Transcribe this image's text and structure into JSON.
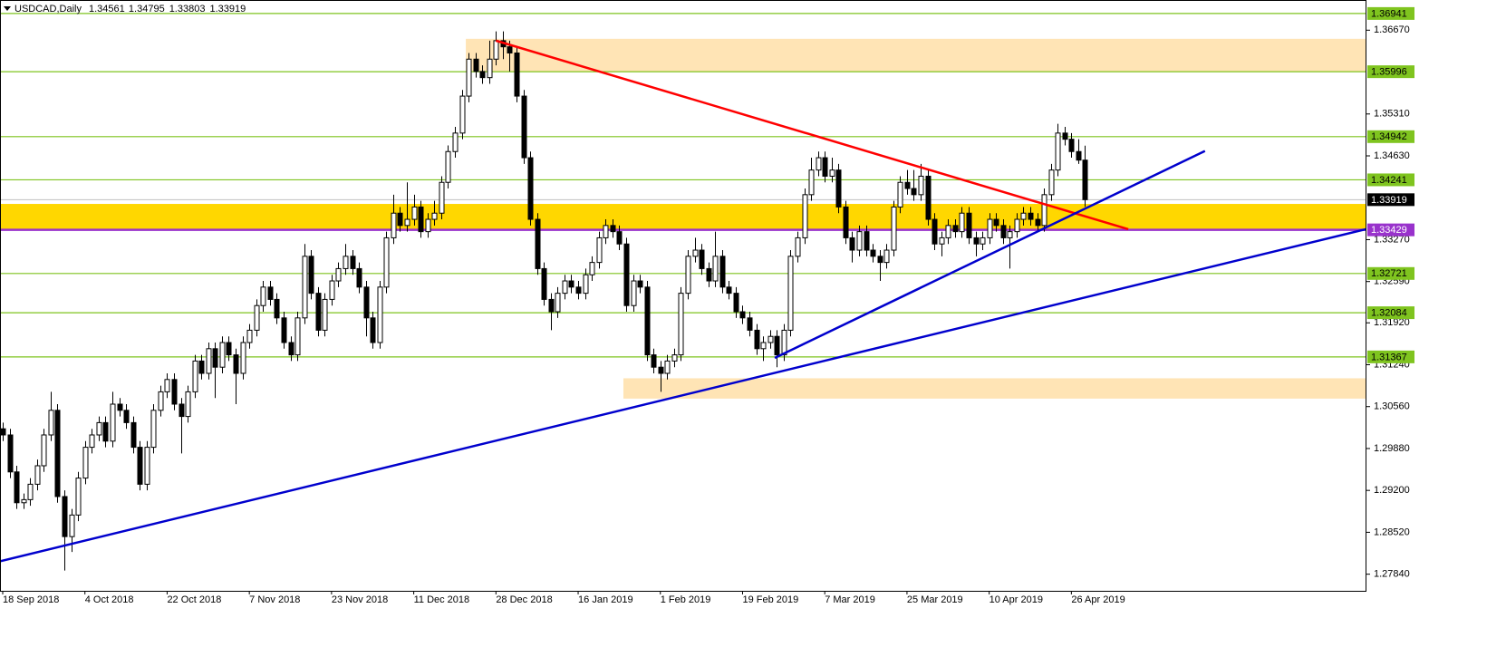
{
  "chart_data": {
    "type": "candlestick",
    "title": "USDCAD,Daily",
    "categories": [
      "18 Sep 2018",
      null,
      null,
      null,
      null,
      null,
      null,
      null,
      null,
      null,
      null,
      null,
      "4 Oct 2018",
      null,
      null,
      null,
      null,
      null,
      null,
      null,
      null,
      null,
      null,
      null,
      "22 Oct 2018",
      null,
      null,
      null,
      null,
      null,
      null,
      null,
      null,
      null,
      null,
      null,
      "7 Nov 2018",
      null,
      null,
      null,
      null,
      null,
      null,
      null,
      null,
      null,
      null,
      null,
      "23 Nov 2018",
      null,
      null,
      null,
      null,
      null,
      null,
      null,
      null,
      null,
      null,
      null,
      "11 Dec 2018",
      null,
      null,
      null,
      null,
      null,
      null,
      null,
      null,
      null,
      null,
      null,
      "28 Dec 2018",
      null,
      null,
      null,
      null,
      null,
      null,
      null,
      null,
      null,
      null,
      null,
      "16 Jan 2019",
      null,
      null,
      null,
      null,
      null,
      null,
      null,
      null,
      null,
      null,
      null,
      "1 Feb 2019",
      null,
      null,
      null,
      null,
      null,
      null,
      null,
      null,
      null,
      null,
      null,
      "19 Feb 2019",
      null,
      null,
      null,
      null,
      null,
      null,
      null,
      null,
      null,
      null,
      null,
      "7 Mar 2019",
      null,
      null,
      null,
      null,
      null,
      null,
      null,
      null,
      null,
      null,
      null,
      "25 Mar 2019",
      null,
      null,
      null,
      null,
      null,
      null,
      null,
      null,
      null,
      null,
      null,
      "10 Apr 2019",
      null,
      null,
      null,
      null,
      null,
      null,
      null,
      null,
      null,
      null,
      null,
      "26 Apr 2019",
      null,
      null
    ],
    "open": [
      1.302,
      1.301,
      1.295,
      1.29,
      1.2905,
      1.293,
      1.296,
      1.301,
      1.305,
      1.291,
      1.2845,
      1.288,
      1.294,
      1.299,
      1.301,
      1.303,
      1.3,
      1.306,
      1.305,
      1.303,
      1.299,
      1.293,
      1.299,
      1.305,
      1.308,
      1.31,
      1.306,
      1.304,
      1.308,
      1.313,
      1.311,
      1.315,
      1.312,
      1.316,
      1.314,
      1.311,
      1.316,
      1.318,
      1.322,
      1.325,
      1.323,
      1.32,
      1.316,
      1.314,
      1.32,
      1.33,
      1.324,
      1.318,
      1.323,
      1.326,
      1.328,
      1.33,
      1.328,
      1.325,
      1.32,
      1.316,
      1.325,
      1.333,
      1.337,
      1.335,
      1.336,
      1.338,
      1.334,
      1.336,
      1.337,
      1.342,
      1.347,
      1.35,
      1.356,
      1.362,
      1.36,
      1.359,
      1.362,
      1.365,
      1.364,
      1.363,
      1.356,
      1.346,
      1.336,
      1.328,
      1.323,
      1.321,
      1.324,
      1.326,
      1.325,
      1.324,
      1.327,
      1.329,
      1.333,
      1.335,
      1.334,
      1.332,
      1.322,
      1.326,
      1.325,
      1.314,
      1.312,
      1.311,
      1.313,
      1.314,
      1.324,
      1.33,
      1.331,
      1.328,
      1.326,
      1.33,
      1.325,
      1.324,
      1.321,
      1.32,
      1.318,
      1.315,
      1.316,
      1.317,
      1.314,
      1.318,
      1.33,
      1.333,
      1.34,
      1.344,
      1.346,
      1.343,
      1.344,
      1.338,
      1.333,
      1.331,
      1.334,
      1.331,
      1.33,
      1.329,
      1.331,
      1.338,
      1.342,
      1.341,
      1.34,
      1.343,
      1.336,
      1.332,
      1.333,
      1.335,
      1.334,
      1.337,
      1.333,
      1.332,
      1.333,
      1.336,
      1.335,
      1.333,
      1.334,
      1.336,
      1.337,
      1.336,
      1.335,
      1.34,
      1.344,
      1.35,
      1.349,
      1.347,
      1.34561
    ],
    "high": [
      1.303,
      1.302,
      1.296,
      1.2915,
      1.294,
      1.297,
      1.302,
      1.308,
      1.306,
      1.292,
      1.289,
      1.295,
      1.3,
      1.302,
      1.304,
      1.304,
      1.308,
      1.307,
      1.306,
      1.304,
      1.3,
      1.3,
      1.306,
      1.309,
      1.311,
      1.311,
      1.307,
      1.309,
      1.314,
      1.314,
      1.316,
      1.316,
      1.317,
      1.317,
      1.315,
      1.317,
      1.319,
      1.323,
      1.326,
      1.326,
      1.324,
      1.321,
      1.317,
      1.321,
      1.332,
      1.331,
      1.325,
      1.324,
      1.327,
      1.329,
      1.332,
      1.331,
      1.329,
      1.326,
      1.321,
      1.326,
      1.334,
      1.34,
      1.338,
      1.342,
      1.34,
      1.339,
      1.337,
      1.339,
      1.343,
      1.348,
      1.351,
      1.357,
      1.363,
      1.363,
      1.361,
      1.365,
      1.3665,
      1.3665,
      1.365,
      1.364,
      1.357,
      1.347,
      1.337,
      1.329,
      1.324,
      1.325,
      1.327,
      1.327,
      1.326,
      1.328,
      1.33,
      1.334,
      1.336,
      1.336,
      1.335,
      1.333,
      1.327,
      1.327,
      1.326,
      1.315,
      1.313,
      1.314,
      1.315,
      1.325,
      1.331,
      1.333,
      1.332,
      1.329,
      1.334,
      1.331,
      1.326,
      1.325,
      1.322,
      1.321,
      1.319,
      1.317,
      1.318,
      1.318,
      1.319,
      1.331,
      1.334,
      1.341,
      1.346,
      1.347,
      1.347,
      1.346,
      1.345,
      1.339,
      1.334,
      1.335,
      1.335,
      1.332,
      1.331,
      1.332,
      1.339,
      1.343,
      1.344,
      1.344,
      1.345,
      1.344,
      1.337,
      1.334,
      1.336,
      1.336,
      1.338,
      1.338,
      1.334,
      1.334,
      1.337,
      1.337,
      1.336,
      1.335,
      1.337,
      1.338,
      1.338,
      1.337,
      1.341,
      1.345,
      1.3515,
      1.351,
      1.35,
      1.349,
      1.34795
    ],
    "low": [
      1.3,
      1.294,
      1.289,
      1.289,
      1.2895,
      1.292,
      1.295,
      1.3,
      1.29,
      1.279,
      1.282,
      1.287,
      1.293,
      1.298,
      1.3,
      1.299,
      1.299,
      1.304,
      1.302,
      1.298,
      1.292,
      1.292,
      1.298,
      1.304,
      1.307,
      1.305,
      1.298,
      1.303,
      1.307,
      1.31,
      1.31,
      1.307,
      1.311,
      1.313,
      1.306,
      1.31,
      1.315,
      1.317,
      1.321,
      1.322,
      1.319,
      1.315,
      1.313,
      1.313,
      1.319,
      1.323,
      1.317,
      1.317,
      1.322,
      1.325,
      1.327,
      1.327,
      1.324,
      1.317,
      1.315,
      1.315,
      1.324,
      1.332,
      1.334,
      1.334,
      1.335,
      1.333,
      1.333,
      1.335,
      1.336,
      1.341,
      1.346,
      1.349,
      1.355,
      1.359,
      1.358,
      1.358,
      1.361,
      1.362,
      1.36,
      1.355,
      1.345,
      1.335,
      1.327,
      1.322,
      1.318,
      1.32,
      1.323,
      1.324,
      1.323,
      1.323,
      1.326,
      1.328,
      1.332,
      1.333,
      1.331,
      1.321,
      1.321,
      1.324,
      1.313,
      1.311,
      1.308,
      1.31,
      1.312,
      1.313,
      1.323,
      1.329,
      1.327,
      1.325,
      1.325,
      1.324,
      1.323,
      1.32,
      1.319,
      1.317,
      1.314,
      1.313,
      1.315,
      1.312,
      1.313,
      1.317,
      1.329,
      1.332,
      1.339,
      1.343,
      1.342,
      1.342,
      1.337,
      1.332,
      1.329,
      1.33,
      1.33,
      1.329,
      1.326,
      1.328,
      1.33,
      1.337,
      1.34,
      1.339,
      1.339,
      1.335,
      1.331,
      1.33,
      1.332,
      1.333,
      1.333,
      1.332,
      1.33,
      1.331,
      1.332,
      1.334,
      1.332,
      1.328,
      1.333,
      1.335,
      1.335,
      1.334,
      1.334,
      1.339,
      1.343,
      1.348,
      1.346,
      1.345,
      1.33803
    ],
    "close": [
      1.301,
      1.295,
      1.29,
      1.2905,
      1.293,
      1.296,
      1.301,
      1.305,
      1.291,
      1.2845,
      1.288,
      1.294,
      1.299,
      1.301,
      1.303,
      1.3,
      1.306,
      1.305,
      1.303,
      1.299,
      1.293,
      1.299,
      1.305,
      1.308,
      1.31,
      1.306,
      1.304,
      1.308,
      1.313,
      1.311,
      1.315,
      1.312,
      1.316,
      1.314,
      1.311,
      1.316,
      1.318,
      1.322,
      1.325,
      1.323,
      1.32,
      1.316,
      1.314,
      1.32,
      1.33,
      1.324,
      1.318,
      1.323,
      1.326,
      1.328,
      1.33,
      1.328,
      1.325,
      1.32,
      1.316,
      1.325,
      1.333,
      1.337,
      1.335,
      1.336,
      1.338,
      1.334,
      1.336,
      1.337,
      1.342,
      1.347,
      1.35,
      1.356,
      1.362,
      1.36,
      1.359,
      1.362,
      1.365,
      1.364,
      1.363,
      1.356,
      1.346,
      1.336,
      1.328,
      1.323,
      1.321,
      1.324,
      1.326,
      1.325,
      1.324,
      1.327,
      1.329,
      1.333,
      1.335,
      1.334,
      1.332,
      1.322,
      1.326,
      1.325,
      1.314,
      1.312,
      1.311,
      1.313,
      1.314,
      1.324,
      1.33,
      1.331,
      1.328,
      1.326,
      1.33,
      1.325,
      1.324,
      1.321,
      1.32,
      1.318,
      1.315,
      1.316,
      1.317,
      1.314,
      1.318,
      1.33,
      1.333,
      1.34,
      1.344,
      1.346,
      1.343,
      1.344,
      1.338,
      1.333,
      1.331,
      1.334,
      1.331,
      1.33,
      1.329,
      1.331,
      1.338,
      1.342,
      1.341,
      1.34,
      1.343,
      1.336,
      1.332,
      1.333,
      1.335,
      1.334,
      1.337,
      1.333,
      1.332,
      1.333,
      1.336,
      1.335,
      1.333,
      1.334,
      1.336,
      1.337,
      1.336,
      1.335,
      1.34,
      1.344,
      1.35,
      1.349,
      1.347,
      1.34561,
      1.33919
    ],
    "ylim": [
      1.2757,
      1.3716
    ],
    "yticks": [
      {
        "value": 1.3667,
        "label": "1.36670"
      },
      {
        "value": 1.3531,
        "label": "1.35310"
      },
      {
        "value": 1.3463,
        "label": "1.34630"
      },
      {
        "value": 1.3327,
        "label": "1.33270"
      },
      {
        "value": 1.3259,
        "label": "1.32590"
      },
      {
        "value": 1.3192,
        "label": "1.31920"
      },
      {
        "value": 1.3124,
        "label": "1.31240"
      },
      {
        "value": 1.3056,
        "label": "1.30560"
      },
      {
        "value": 1.2988,
        "label": "1.29880"
      },
      {
        "value": 1.292,
        "label": "1.29200"
      },
      {
        "value": 1.2852,
        "label": "1.28520"
      },
      {
        "value": 1.2784,
        "label": "1.27840"
      }
    ],
    "levels": [
      1.36941,
      1.35996,
      1.34942,
      1.34241,
      1.32721,
      1.32084,
      1.31367
    ],
    "level_color": "#7fc41f",
    "support_level": 1.33429,
    "support_color": "#9932cc",
    "price_line_color": "#c0c0c0",
    "bull_color": "#ffffff",
    "bear_color": "#000000",
    "zones": [
      {
        "from": 1.3343,
        "to": 1.3385,
        "start": 0,
        "color": "#ffd700"
      },
      {
        "from": 1.3599,
        "to": 1.3653,
        "start": 68,
        "color": "#ffe4b5"
      },
      {
        "from": 1.3069,
        "to": 1.3102,
        "start": 91,
        "color": "#ffe4b5"
      }
    ],
    "trendlines": [
      {
        "color": "#ff0000",
        "from": [
          72,
          1.365
        ],
        "to": [
          164.3,
          1.3344
        ]
      },
      {
        "color": "#0000cd",
        "from": [
          -0.4,
          1.2805
        ],
        "to": [
          199,
          1.3344
        ]
      },
      {
        "color": "#0000cd",
        "from": [
          112.7,
          1.3135
        ],
        "to": [
          175.5,
          1.3471
        ]
      }
    ]
  }
}
